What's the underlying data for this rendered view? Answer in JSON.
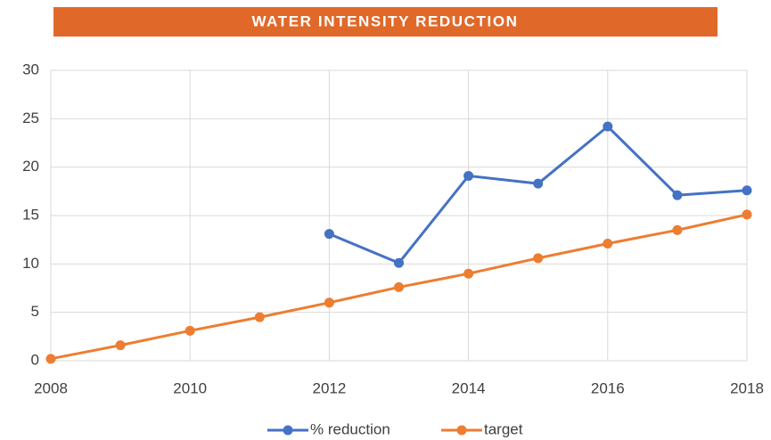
{
  "chart_data": {
    "type": "line",
    "title": "WATER INTENSITY REDUCTION",
    "x": [
      2008,
      2009,
      2010,
      2011,
      2012,
      2013,
      2014,
      2015,
      2016,
      2017,
      2018
    ],
    "series": [
      {
        "name": "% reduction",
        "color": "#4472c4",
        "values": [
          null,
          null,
          null,
          null,
          13.1,
          10.1,
          19.1,
          18.3,
          24.2,
          17.1,
          17.6
        ]
      },
      {
        "name": "target",
        "color": "#ed7d31",
        "values": [
          0.2,
          1.6,
          3.1,
          4.5,
          6.0,
          7.6,
          9.0,
          10.6,
          12.1,
          13.5,
          15.1
        ]
      }
    ],
    "xlim": [
      2008,
      2018
    ],
    "xticks": [
      2008,
      2010,
      2012,
      2014,
      2016,
      2018
    ],
    "ylim": [
      0,
      30
    ],
    "yticks": [
      0,
      5,
      10,
      15,
      20,
      25,
      30
    ],
    "grid": true,
    "title_color": "#e0692a",
    "legend": "bottom"
  }
}
